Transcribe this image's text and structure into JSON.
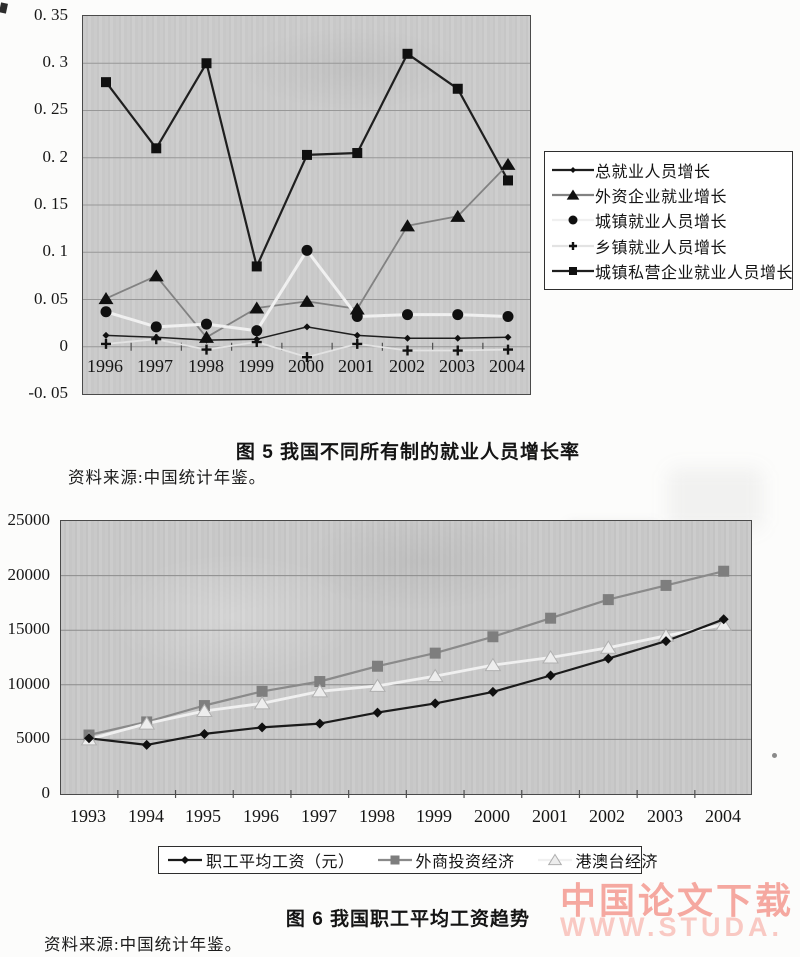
{
  "figures": [
    {
      "caption": "图 5  我国不同所有制的就业人员增长率",
      "source": "资料来源:中国统计年鉴。"
    },
    {
      "caption": "图 6  我国职工平均工资趋势",
      "source": "资料来源:中国统计年鉴。"
    }
  ],
  "watermark": {
    "line1": "中国论文下载",
    "line2": "WWW.STUDA.",
    "color_line1": "#f5a8a0",
    "color_line2": "#f9c9c3"
  },
  "chart_data": [
    {
      "id": "figure5",
      "type": "line",
      "title": "图 5 我国不同所有制的就业人员增长率",
      "categories": [
        "1996",
        "1997",
        "1998",
        "1999",
        "2000",
        "2001",
        "2002",
        "2003",
        "2004"
      ],
      "ylim": [
        -0.05,
        0.35
      ],
      "grid": true,
      "legend_position": "right",
      "plot_background": "#c8c8c8",
      "yticks": [
        {
          "value": 0.35,
          "label": "0. 35"
        },
        {
          "value": 0.3,
          "label": "0. 3"
        },
        {
          "value": 0.25,
          "label": "0. 25"
        },
        {
          "value": 0.2,
          "label": "0. 2"
        },
        {
          "value": 0.15,
          "label": "0. 15"
        },
        {
          "value": 0.1,
          "label": "0. 1"
        },
        {
          "value": 0.05,
          "label": "0. 05"
        },
        {
          "value": 0.0,
          "label": "0"
        },
        {
          "value": -0.05,
          "label": "-0. 05"
        }
      ],
      "series": [
        {
          "name": "总就业人员增长",
          "marker": "diamond",
          "line_color": "#1f1f1f",
          "marker_color": "#101010",
          "values": [
            0.012,
            0.01,
            0.007,
            0.008,
            0.021,
            0.012,
            0.009,
            0.009,
            0.01
          ]
        },
        {
          "name": "外资企业就业增长",
          "marker": "triangle",
          "line_color": "#828282",
          "marker_color": "#101010",
          "values": [
            0.051,
            0.075,
            0.01,
            0.041,
            0.048,
            0.04,
            0.128,
            0.138,
            0.193
          ]
        },
        {
          "name": "城镇就业人员增长",
          "marker": "circle",
          "line_color": "#f0f0f0",
          "marker_color": "#101010",
          "values": [
            0.037,
            0.021,
            0.024,
            0.017,
            0.102,
            0.032,
            0.034,
            0.034,
            0.032
          ]
        },
        {
          "name": "乡镇就业人员增长",
          "marker": "plus",
          "line_color": "#e3e3e3",
          "marker_color": "#101010",
          "values": [
            0.003,
            0.008,
            -0.003,
            0.005,
            -0.011,
            0.003,
            -0.004,
            -0.004,
            -0.003
          ]
        },
        {
          "name": "城镇私营企业就业人员增长",
          "marker": "square",
          "line_color": "#1f1f1f",
          "marker_color": "#101010",
          "values": [
            0.28,
            0.21,
            0.3,
            0.085,
            0.203,
            0.205,
            0.31,
            0.273,
            0.176
          ]
        }
      ]
    },
    {
      "id": "figure6",
      "type": "line",
      "title": "图 6 我国职工平均工资趋势",
      "categories": [
        "1993",
        "1994",
        "1995",
        "1996",
        "1997",
        "1998",
        "1999",
        "2000",
        "2001",
        "2002",
        "2003",
        "2004"
      ],
      "ylim": [
        0,
        25000
      ],
      "grid": true,
      "legend_position": "bottom",
      "plot_background": "#c6c6c6",
      "yticks": [
        {
          "value": 25000,
          "label": "25000"
        },
        {
          "value": 20000,
          "label": "20000"
        },
        {
          "value": 15000,
          "label": "15000"
        },
        {
          "value": 10000,
          "label": "10000"
        },
        {
          "value": 5000,
          "label": "5000"
        },
        {
          "value": 0,
          "label": "0"
        }
      ],
      "series": [
        {
          "name": "职工平均工资（元）",
          "marker": "diamond",
          "line_color": "#1b1b1b",
          "marker_color": "#101010",
          "values": [
            5100,
            4500,
            5500,
            6100,
            6450,
            7450,
            8300,
            9350,
            10850,
            12400,
            14000,
            16000
          ]
        },
        {
          "name": "外商投资经济",
          "marker": "square",
          "line_color": "#8a8a8a",
          "marker_color": "#7e7e7e",
          "values": [
            5400,
            6600,
            8100,
            9400,
            10300,
            11700,
            12900,
            14400,
            16100,
            17800,
            19100,
            20400
          ]
        },
        {
          "name": "港澳台经济",
          "marker": "triangle-light",
          "line_color": "#f0f0f0",
          "marker_color": "#ededed",
          "values": [
            5000,
            6450,
            7600,
            8300,
            9400,
            9900,
            10800,
            11800,
            12500,
            13400,
            14500,
            15500
          ]
        }
      ]
    }
  ]
}
